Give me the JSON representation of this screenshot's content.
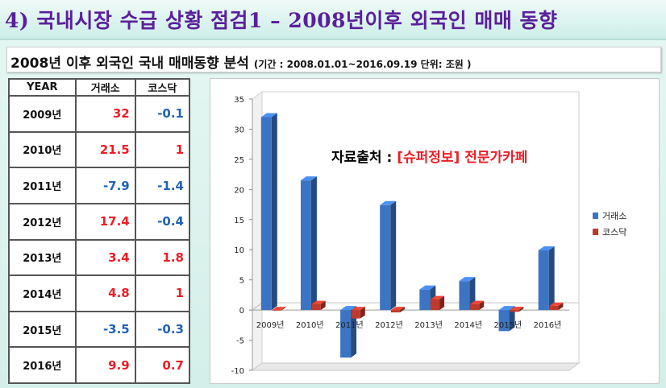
{
  "header": {
    "title": "4) 국내시장 수급 상황 점검1 – 2008년이후 외국인 매매 동향"
  },
  "subtitle": {
    "main": "2008년 이후 외국인 국내 매매동향 분석",
    "period": "(기간 : 2008.01.01~2016.09.19 단위: 조원 )"
  },
  "table": {
    "headers": [
      "YEAR",
      "거래소",
      "코스닥"
    ],
    "rows": [
      {
        "year": "2009년",
        "kospi": "32",
        "kosdaq": "-0.1"
      },
      {
        "year": "2010년",
        "kospi": "21.5",
        "kosdaq": "1"
      },
      {
        "year": "2011년",
        "kospi": "-7.9",
        "kosdaq": "-1.4"
      },
      {
        "year": "2012년",
        "kospi": "17.4",
        "kosdaq": "-0.4"
      },
      {
        "year": "2013년",
        "kospi": "3.4",
        "kosdaq": "1.8"
      },
      {
        "year": "2014년",
        "kospi": "4.8",
        "kosdaq": "1"
      },
      {
        "year": "2015년",
        "kospi": "-3.5",
        "kosdaq": "-0.3"
      },
      {
        "year": "2016년",
        "kospi": "9.9",
        "kosdaq": "0.7"
      }
    ]
  },
  "source": {
    "label": "자료출처 : ",
    "link": "[슈퍼정보] 전문가카페"
  },
  "colors": {
    "positive": "#ee1c25",
    "negative": "#1f63b5",
    "series_kospi": "#3c74c4",
    "series_kosdaq": "#c0392b"
  },
  "chart_data": {
    "type": "bar",
    "categories": [
      "2009년",
      "2010년",
      "2011년",
      "2012년",
      "2013년",
      "2014년",
      "2015년",
      "2016년"
    ],
    "series": [
      {
        "name": "거래소",
        "values": [
          32,
          21.5,
          -7.9,
          17.4,
          3.4,
          4.8,
          -3.5,
          9.9
        ]
      },
      {
        "name": "코스닥",
        "values": [
          -0.1,
          1,
          -1.4,
          -0.4,
          1.8,
          1,
          -0.3,
          0.7
        ]
      }
    ],
    "ylim": [
      -10,
      35
    ],
    "yticks": [
      "-10",
      "-5",
      "0",
      "5",
      "10",
      "15",
      "20",
      "25",
      "30",
      "35"
    ],
    "legend": "right",
    "style": "3d"
  }
}
